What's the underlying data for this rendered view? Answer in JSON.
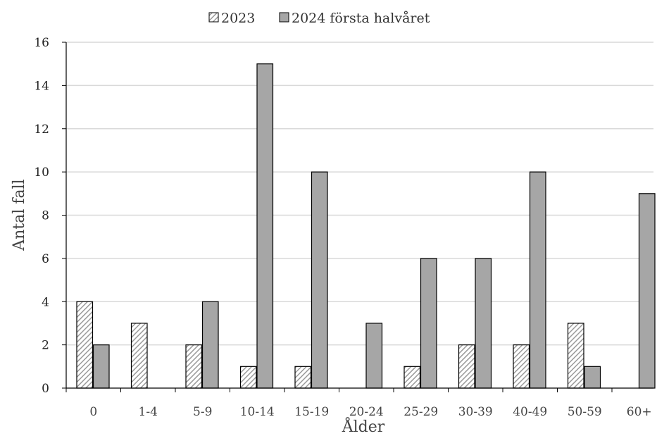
{
  "chart_data": {
    "type": "bar",
    "categories": [
      "0",
      "1-4",
      "5-9",
      "10-14",
      "15-19",
      "20-24",
      "25-29",
      "30-39",
      "40-49",
      "50-59",
      "60+"
    ],
    "series": [
      {
        "name": "2023",
        "values": [
          4,
          3,
          2,
          1,
          1,
          0,
          1,
          2,
          2,
          3,
          0
        ],
        "pattern": "hatched",
        "color": "#bdbdbd"
      },
      {
        "name": "2024 första halvåret",
        "values": [
          2,
          0,
          4,
          15,
          10,
          3,
          6,
          6,
          10,
          1,
          9
        ],
        "pattern": "solid",
        "color": "#a6a6a6"
      }
    ],
    "xlabel": "Ålder",
    "ylabel": "Antal fall",
    "ylim": [
      0,
      16
    ],
    "yticks": [
      0,
      2,
      4,
      6,
      8,
      10,
      12,
      14,
      16
    ],
    "grid": true,
    "legend_position": "top-center"
  }
}
